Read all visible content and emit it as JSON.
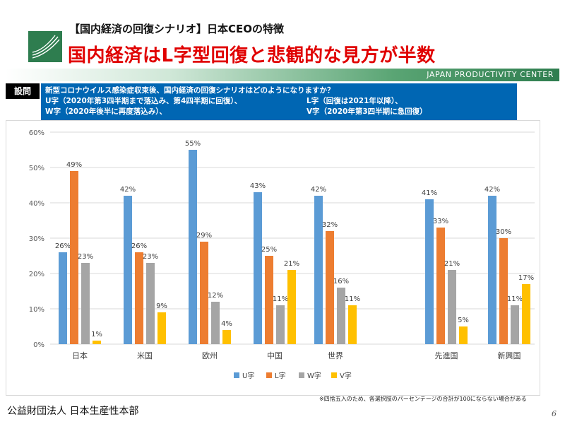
{
  "header": {
    "subtitle": "【国内経済の回復シナリオ】日本CEOの特徴",
    "title": "国内経済はL字型回復と悲観的な見方が半数",
    "logo_text": "JAPAN PRODUCTIVITY CENTER",
    "band_text": "JAPAN PRODUCTIVITY CENTER"
  },
  "question": {
    "label": "設問",
    "text": "新型コロナウイルス感染症収束後、国内経済の回復シナリオはどのようになりますか？",
    "u_desc": "U字（2020年第3四半期まで落込み、第4四半期に回復）、",
    "l_desc": "L字（回復は2021年以降）、",
    "w_desc": "W字（2020年後半に再度落込み）、",
    "v_desc": "V字（2020年第3四半期に急回復）"
  },
  "chart_data": {
    "type": "bar",
    "categories": [
      "日本",
      "米国",
      "欧州",
      "中国",
      "世界",
      "先進国",
      "新興国"
    ],
    "series": [
      {
        "name": "U字",
        "color": "#5b9bd5",
        "values": [
          26,
          42,
          55,
          43,
          42,
          41,
          42
        ]
      },
      {
        "name": "L字",
        "color": "#ed7d31",
        "values": [
          49,
          26,
          29,
          25,
          32,
          33,
          30
        ]
      },
      {
        "name": "W字",
        "color": "#a5a5a5",
        "values": [
          23,
          23,
          12,
          11,
          16,
          21,
          11
        ]
      },
      {
        "name": "V字",
        "color": "#ffc000",
        "values": [
          1,
          9,
          4,
          21,
          11,
          5,
          17
        ]
      }
    ],
    "y_ticks": [
      "0%",
      "10%",
      "20%",
      "30%",
      "40%",
      "50%",
      "60%"
    ],
    "ylim": [
      0,
      60
    ],
    "unit": "%",
    "legend": "bottom",
    "grid": true
  },
  "footer": {
    "footnote": "※四捨五入のため、各選択肢のパーセンテージの合計が100にならない場合がある",
    "org": "公益財団法人 日本生産性本部",
    "page": "6"
  }
}
